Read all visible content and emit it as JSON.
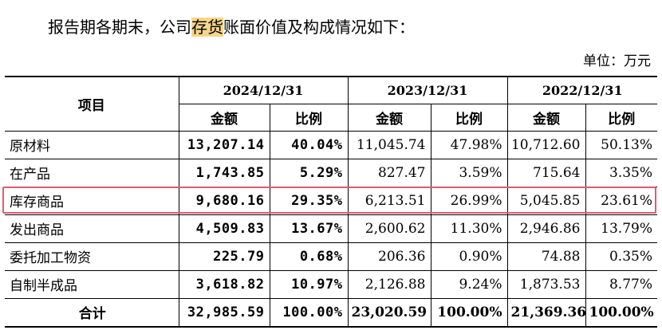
{
  "intro": {
    "before": "报告期各期末，公司",
    "highlight": "存货",
    "after": "账面价值及构成情况如下："
  },
  "unit": "单位：万元",
  "table": {
    "item_header": "项目",
    "years": [
      "2024/12/31",
      "2023/12/31",
      "2022/12/31"
    ],
    "subheaders": [
      "金额",
      "比例",
      "金额",
      "比例",
      "金额",
      "比例"
    ],
    "rows": [
      {
        "name": "原材料",
        "cells": [
          "13,207.14",
          "40.04%",
          "11,045.74",
          "47.98%",
          "10,712.60",
          "50.13%"
        ]
      },
      {
        "name": "在产品",
        "cells": [
          "1,743.85",
          "5.29%",
          "827.47",
          "3.59%",
          "715.64",
          "3.35%"
        ]
      },
      {
        "name": "库存商品",
        "cells": [
          "9,680.16",
          "29.35%",
          "6,213.51",
          "26.99%",
          "5,045.85",
          "23.61%"
        ]
      },
      {
        "name": "发出商品",
        "cells": [
          "4,509.83",
          "13.67%",
          "2,600.62",
          "11.30%",
          "2,946.86",
          "13.79%"
        ]
      },
      {
        "name": "委托加工物资",
        "cells": [
          "225.79",
          "0.68%",
          "206.36",
          "0.90%",
          "74.88",
          "0.35%"
        ]
      },
      {
        "name": "自制半成品",
        "cells": [
          "3,618.82",
          "10.97%",
          "2,126.88",
          "9.24%",
          "1,873.53",
          "8.77%"
        ]
      }
    ],
    "total": {
      "name": "合计",
      "cells": [
        "32,985.59",
        "100.00%",
        "23,020.59",
        "100.00%",
        "21,369.36",
        "100.00%"
      ]
    }
  },
  "colors": {
    "highlight": "#f6d58a",
    "row_box": "#e05a73"
  }
}
